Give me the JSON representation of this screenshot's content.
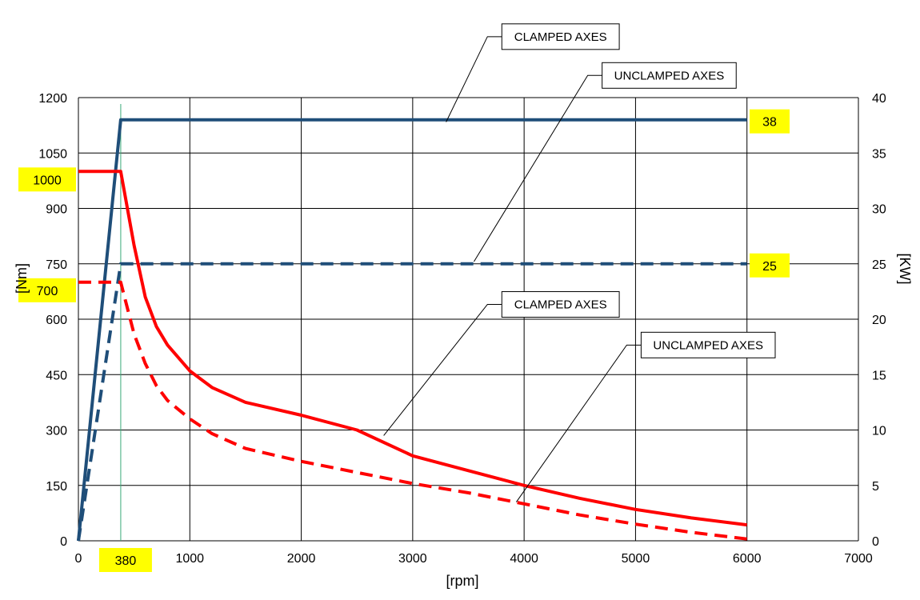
{
  "chart_data": {
    "type": "line",
    "xlabel": "[rpm]",
    "ylabel_left": "[Nm]",
    "ylabel_right": "[KW]",
    "xlim": [
      0,
      7000
    ],
    "ylim_left": [
      0,
      1200
    ],
    "ylim_right": [
      0,
      40
    ],
    "x_ticks": [
      0,
      1000,
      2000,
      3000,
      4000,
      5000,
      6000,
      7000
    ],
    "y_left_ticks": [
      0,
      150,
      300,
      450,
      600,
      750,
      900,
      1050,
      1200
    ],
    "y_right_ticks": [
      0,
      5,
      10,
      15,
      20,
      25,
      30,
      35,
      40
    ],
    "grid": true,
    "marker_line_x": 380,
    "series": [
      {
        "axis": "right",
        "color": "#1F4E79",
        "dash": "solid",
        "points": [
          [
            0,
            0
          ],
          [
            380,
            38
          ],
          [
            6000,
            38
          ]
        ]
      },
      {
        "axis": "right",
        "color": "#1F4E79",
        "dash": "dashed",
        "points": [
          [
            0,
            0
          ],
          [
            380,
            25
          ],
          [
            6000,
            25
          ]
        ]
      },
      {
        "axis": "left",
        "color": "#FF0000",
        "dash": "solid",
        "points": [
          [
            0,
            1000
          ],
          [
            380,
            1000
          ],
          [
            500,
            800
          ],
          [
            600,
            660
          ],
          [
            700,
            580
          ],
          [
            800,
            530
          ],
          [
            1000,
            460
          ],
          [
            1200,
            415
          ],
          [
            1500,
            375
          ],
          [
            2000,
            340
          ],
          [
            2500,
            300
          ],
          [
            3000,
            230
          ],
          [
            3500,
            190
          ],
          [
            4000,
            150
          ],
          [
            4500,
            115
          ],
          [
            5000,
            85
          ],
          [
            5500,
            62
          ],
          [
            6000,
            43
          ]
        ]
      },
      {
        "axis": "left",
        "color": "#FF0000",
        "dash": "dashed",
        "points": [
          [
            0,
            700
          ],
          [
            380,
            700
          ],
          [
            500,
            560
          ],
          [
            600,
            480
          ],
          [
            700,
            420
          ],
          [
            800,
            380
          ],
          [
            1000,
            330
          ],
          [
            1200,
            290
          ],
          [
            1500,
            250
          ],
          [
            2000,
            215
          ],
          [
            2500,
            185
          ],
          [
            3000,
            155
          ],
          [
            3500,
            130
          ],
          [
            4000,
            100
          ],
          [
            4500,
            70
          ],
          [
            5000,
            45
          ],
          [
            5500,
            23
          ],
          [
            6000,
            5
          ]
        ]
      }
    ],
    "value_badges": [
      {
        "text": "1000",
        "axis": "left",
        "y": 1000,
        "side": "left"
      },
      {
        "text": "700",
        "axis": "left",
        "y": 700,
        "side": "left"
      },
      {
        "text": "38",
        "axis": "right",
        "y": 38,
        "side": "right"
      },
      {
        "text": "25",
        "axis": "right",
        "y": 25,
        "side": "right"
      },
      {
        "text": "380",
        "axis": "x",
        "x": 380,
        "side": "bottom"
      }
    ],
    "annotations": [
      {
        "text": "CLAMPED AXES",
        "target_x": 3300,
        "target_y": 37.8,
        "target_axis": "right",
        "box_x": 3800,
        "box_y": 45.5,
        "box_axis": "right"
      },
      {
        "text": "UNCLAMPED AXES",
        "target_x": 3550,
        "target_y": 25.2,
        "target_axis": "right",
        "box_x": 4700,
        "box_y": 42,
        "box_axis": "right"
      },
      {
        "text": "CLAMPED AXES",
        "target_x": 2740,
        "target_y": 285,
        "target_axis": "left",
        "box_x": 3800,
        "box_y": 640,
        "box_axis": "left"
      },
      {
        "text": "UNCLAMPED AXES",
        "target_x": 3930,
        "target_y": 105,
        "target_axis": "left",
        "box_x": 5050,
        "box_y": 530,
        "box_axis": "left"
      }
    ]
  }
}
